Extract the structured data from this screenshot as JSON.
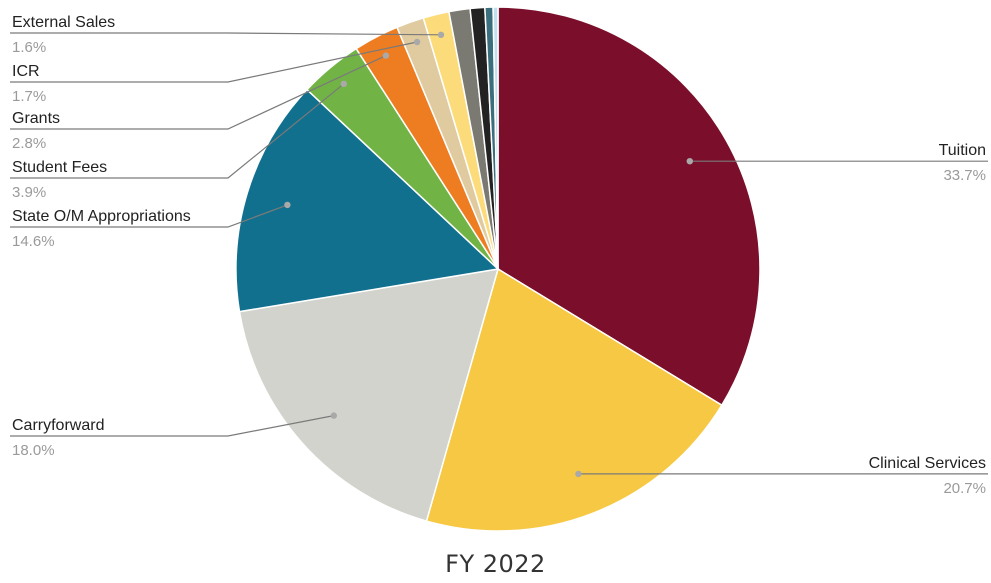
{
  "chart_data": {
    "type": "pie",
    "title": "FY 2022",
    "slices": [
      {
        "label": "Tuition",
        "value": 33.7,
        "display": "33.7%",
        "color": "#7b0f2b",
        "labelled": true
      },
      {
        "label": "Clinical Services",
        "value": 20.7,
        "display": "20.7%",
        "color": "#f6c843",
        "labelled": true
      },
      {
        "label": "Carryforward",
        "value": 18.0,
        "display": "18.0%",
        "color": "#d2d3cd",
        "labelled": true
      },
      {
        "label": "State O/M Appropriations",
        "value": 14.6,
        "display": "14.6%",
        "color": "#11708e",
        "labelled": true
      },
      {
        "label": "Student Fees",
        "value": 3.9,
        "display": "3.9%",
        "color": "#71b445",
        "labelled": true
      },
      {
        "label": "Grants",
        "value": 2.8,
        "display": "2.8%",
        "color": "#ee7d22",
        "labelled": true
      },
      {
        "label": "ICR",
        "value": 1.7,
        "display": "1.7%",
        "color": "#e0cba0",
        "labelled": true
      },
      {
        "label": "External Sales",
        "value": 1.6,
        "display": "1.6%",
        "color": "#fcdc7a",
        "labelled": true
      },
      {
        "label": "",
        "value": 1.3,
        "display": "",
        "color": "#7a7a72",
        "labelled": false
      },
      {
        "label": "",
        "value": 0.9,
        "display": "",
        "color": "#222222",
        "labelled": false
      },
      {
        "label": "",
        "value": 0.5,
        "display": "",
        "color": "#3c6f7e",
        "labelled": false
      },
      {
        "label": "",
        "value": 0.3,
        "display": "",
        "color": "#bfe0ec",
        "labelled": false
      }
    ]
  }
}
